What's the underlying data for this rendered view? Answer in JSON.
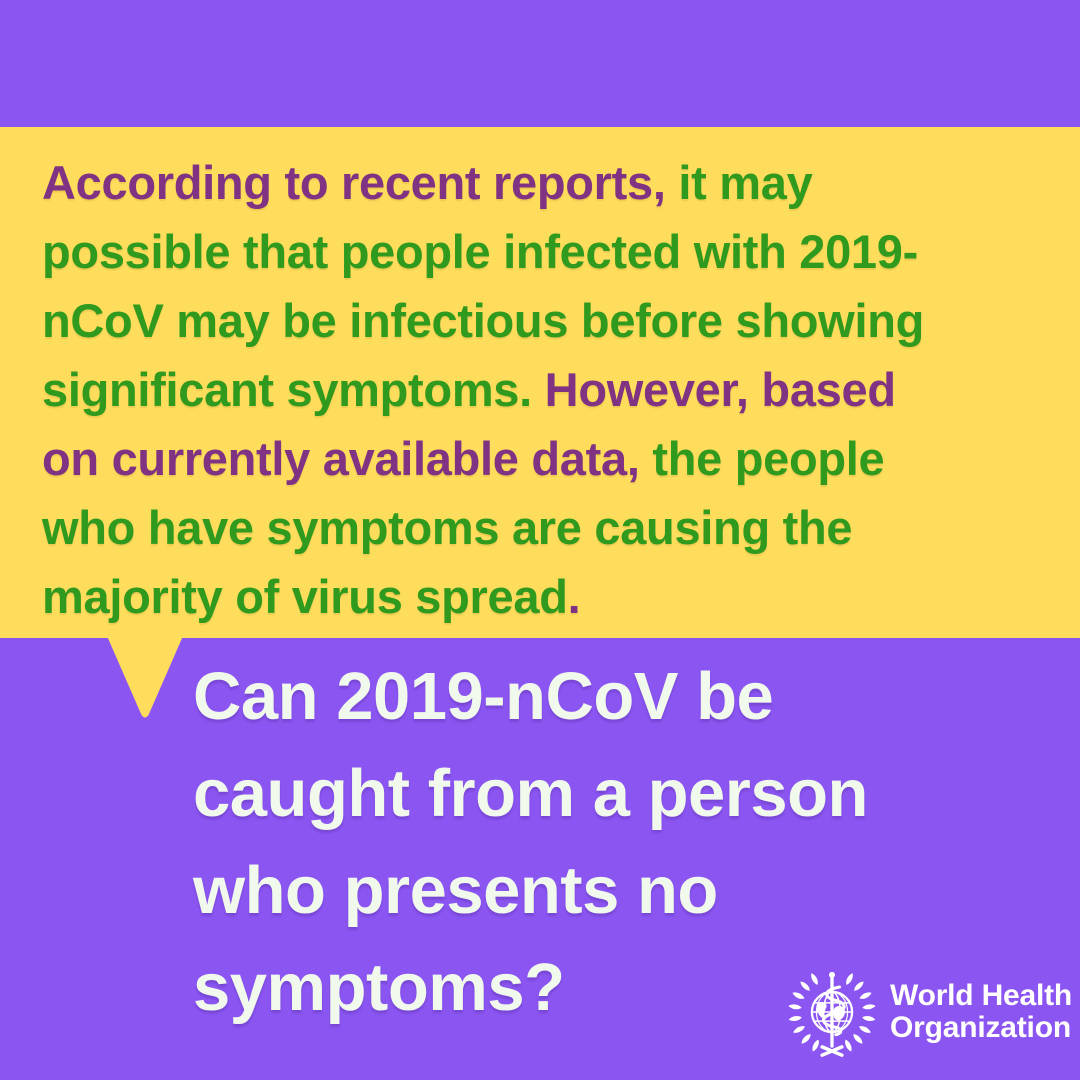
{
  "colors": {
    "background_purple": "#8B55F2",
    "bubble_yellow": "#FFDD5C",
    "text_purple": "#803283",
    "text_green": "#2F9A1D",
    "question_white": "#F1F8EC",
    "logo_white": "#FFFFFF"
  },
  "bubble": {
    "lines": [
      [
        {
          "text": "According to recent reports,",
          "color": "purple"
        },
        {
          "text": " it may",
          "color": "green"
        }
      ],
      [
        {
          "text": "possible that people infected with 2019-",
          "color": "green"
        }
      ],
      [
        {
          "text": "nCoV may be infectious before showing",
          "color": "green"
        }
      ],
      [
        {
          "text": "significant symptoms.",
          "color": "green"
        },
        {
          "text": " However, based",
          "color": "purple"
        }
      ],
      [
        {
          "text": "on currently available data,",
          "color": "purple"
        },
        {
          "text": " the people",
          "color": "green"
        }
      ],
      [
        {
          "text": "who have symptoms are causing the",
          "color": "green"
        }
      ],
      [
        {
          "text": "majority of virus spread",
          "color": "green"
        },
        {
          "text": ".",
          "color": "purple"
        }
      ]
    ]
  },
  "question": {
    "text": "Can 2019-nCoV be\ncaught from a person\nwho presents no\nsymptoms?"
  },
  "logo": {
    "icon": "who-emblem-icon",
    "line1": "World Health",
    "line2": "Organization"
  }
}
